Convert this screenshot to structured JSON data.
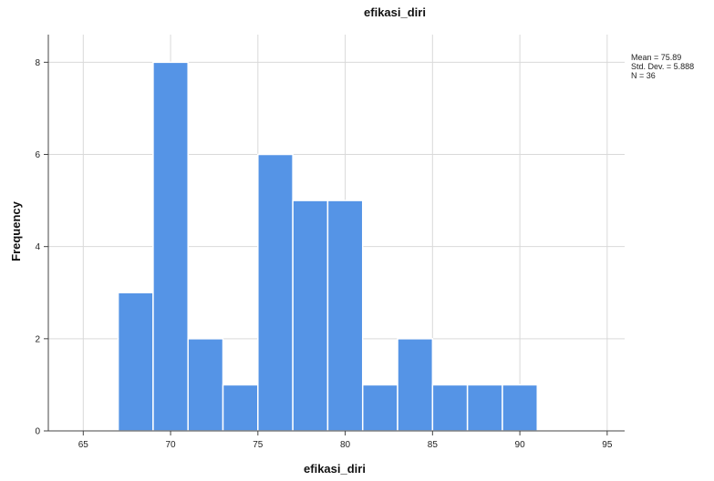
{
  "chart_data": {
    "type": "bar",
    "title": "efikasi_diri",
    "xlabel": "efikasi_diri",
    "ylabel": "Frequency",
    "bin_width": 2,
    "bins": [
      {
        "start": 67,
        "end": 69,
        "value": 3
      },
      {
        "start": 69,
        "end": 71,
        "value": 8
      },
      {
        "start": 71,
        "end": 73,
        "value": 2
      },
      {
        "start": 73,
        "end": 75,
        "value": 1
      },
      {
        "start": 75,
        "end": 77,
        "value": 6
      },
      {
        "start": 77,
        "end": 79,
        "value": 5
      },
      {
        "start": 79,
        "end": 81,
        "value": 5
      },
      {
        "start": 81,
        "end": 83,
        "value": 1
      },
      {
        "start": 83,
        "end": 85,
        "value": 2
      },
      {
        "start": 85,
        "end": 87,
        "value": 1
      },
      {
        "start": 87,
        "end": 89,
        "value": 1
      },
      {
        "start": 89,
        "end": 91,
        "value": 1
      }
    ],
    "xlim": [
      63,
      96
    ],
    "ylim": [
      0,
      8.6
    ],
    "x_ticks": [
      65,
      70,
      75,
      80,
      85,
      90,
      95
    ],
    "x_tick_labels": [
      "65",
      "70",
      "75",
      "80",
      "85",
      "90",
      "95"
    ],
    "y_ticks": [
      0,
      2,
      4,
      6,
      8
    ],
    "y_tick_labels": [
      "0",
      "2",
      "4",
      "6",
      "8"
    ],
    "grid": true,
    "bar_color": "#5594e6",
    "stats": {
      "mean": "Mean = 75.89",
      "std_dev": "Std. Dev. = 5.888",
      "n": "N = 36"
    },
    "legend_position": "top-right"
  }
}
